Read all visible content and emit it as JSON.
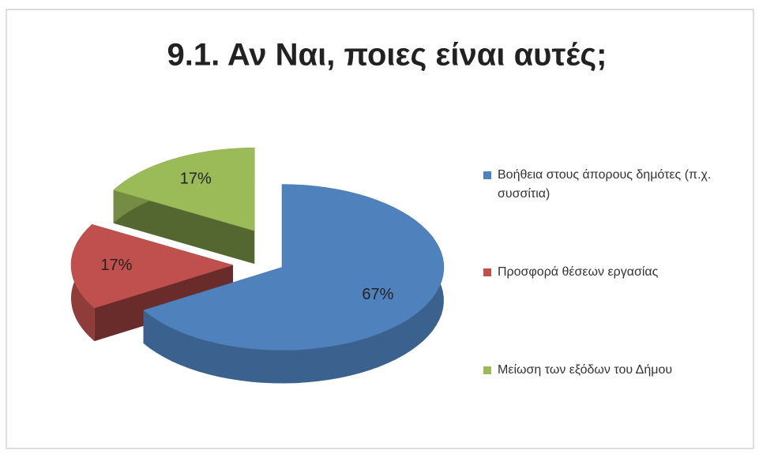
{
  "chart_data": {
    "type": "pie",
    "title": "9.1. Αν Ναι, ποιες είναι αυτές;",
    "categories": [
      "Βοήθεια στους άπορους δημότες (π.χ. συσσίτια)",
      "Προσφορά θέσεων εργασίας",
      "Μείωση των εξόδων του Δήμου"
    ],
    "values": [
      67,
      17,
      17
    ],
    "value_labels": [
      "67%",
      "17%",
      "17%"
    ],
    "colors": [
      "#4f81bd",
      "#c0504d",
      "#9bbb59"
    ],
    "legend": "right"
  }
}
